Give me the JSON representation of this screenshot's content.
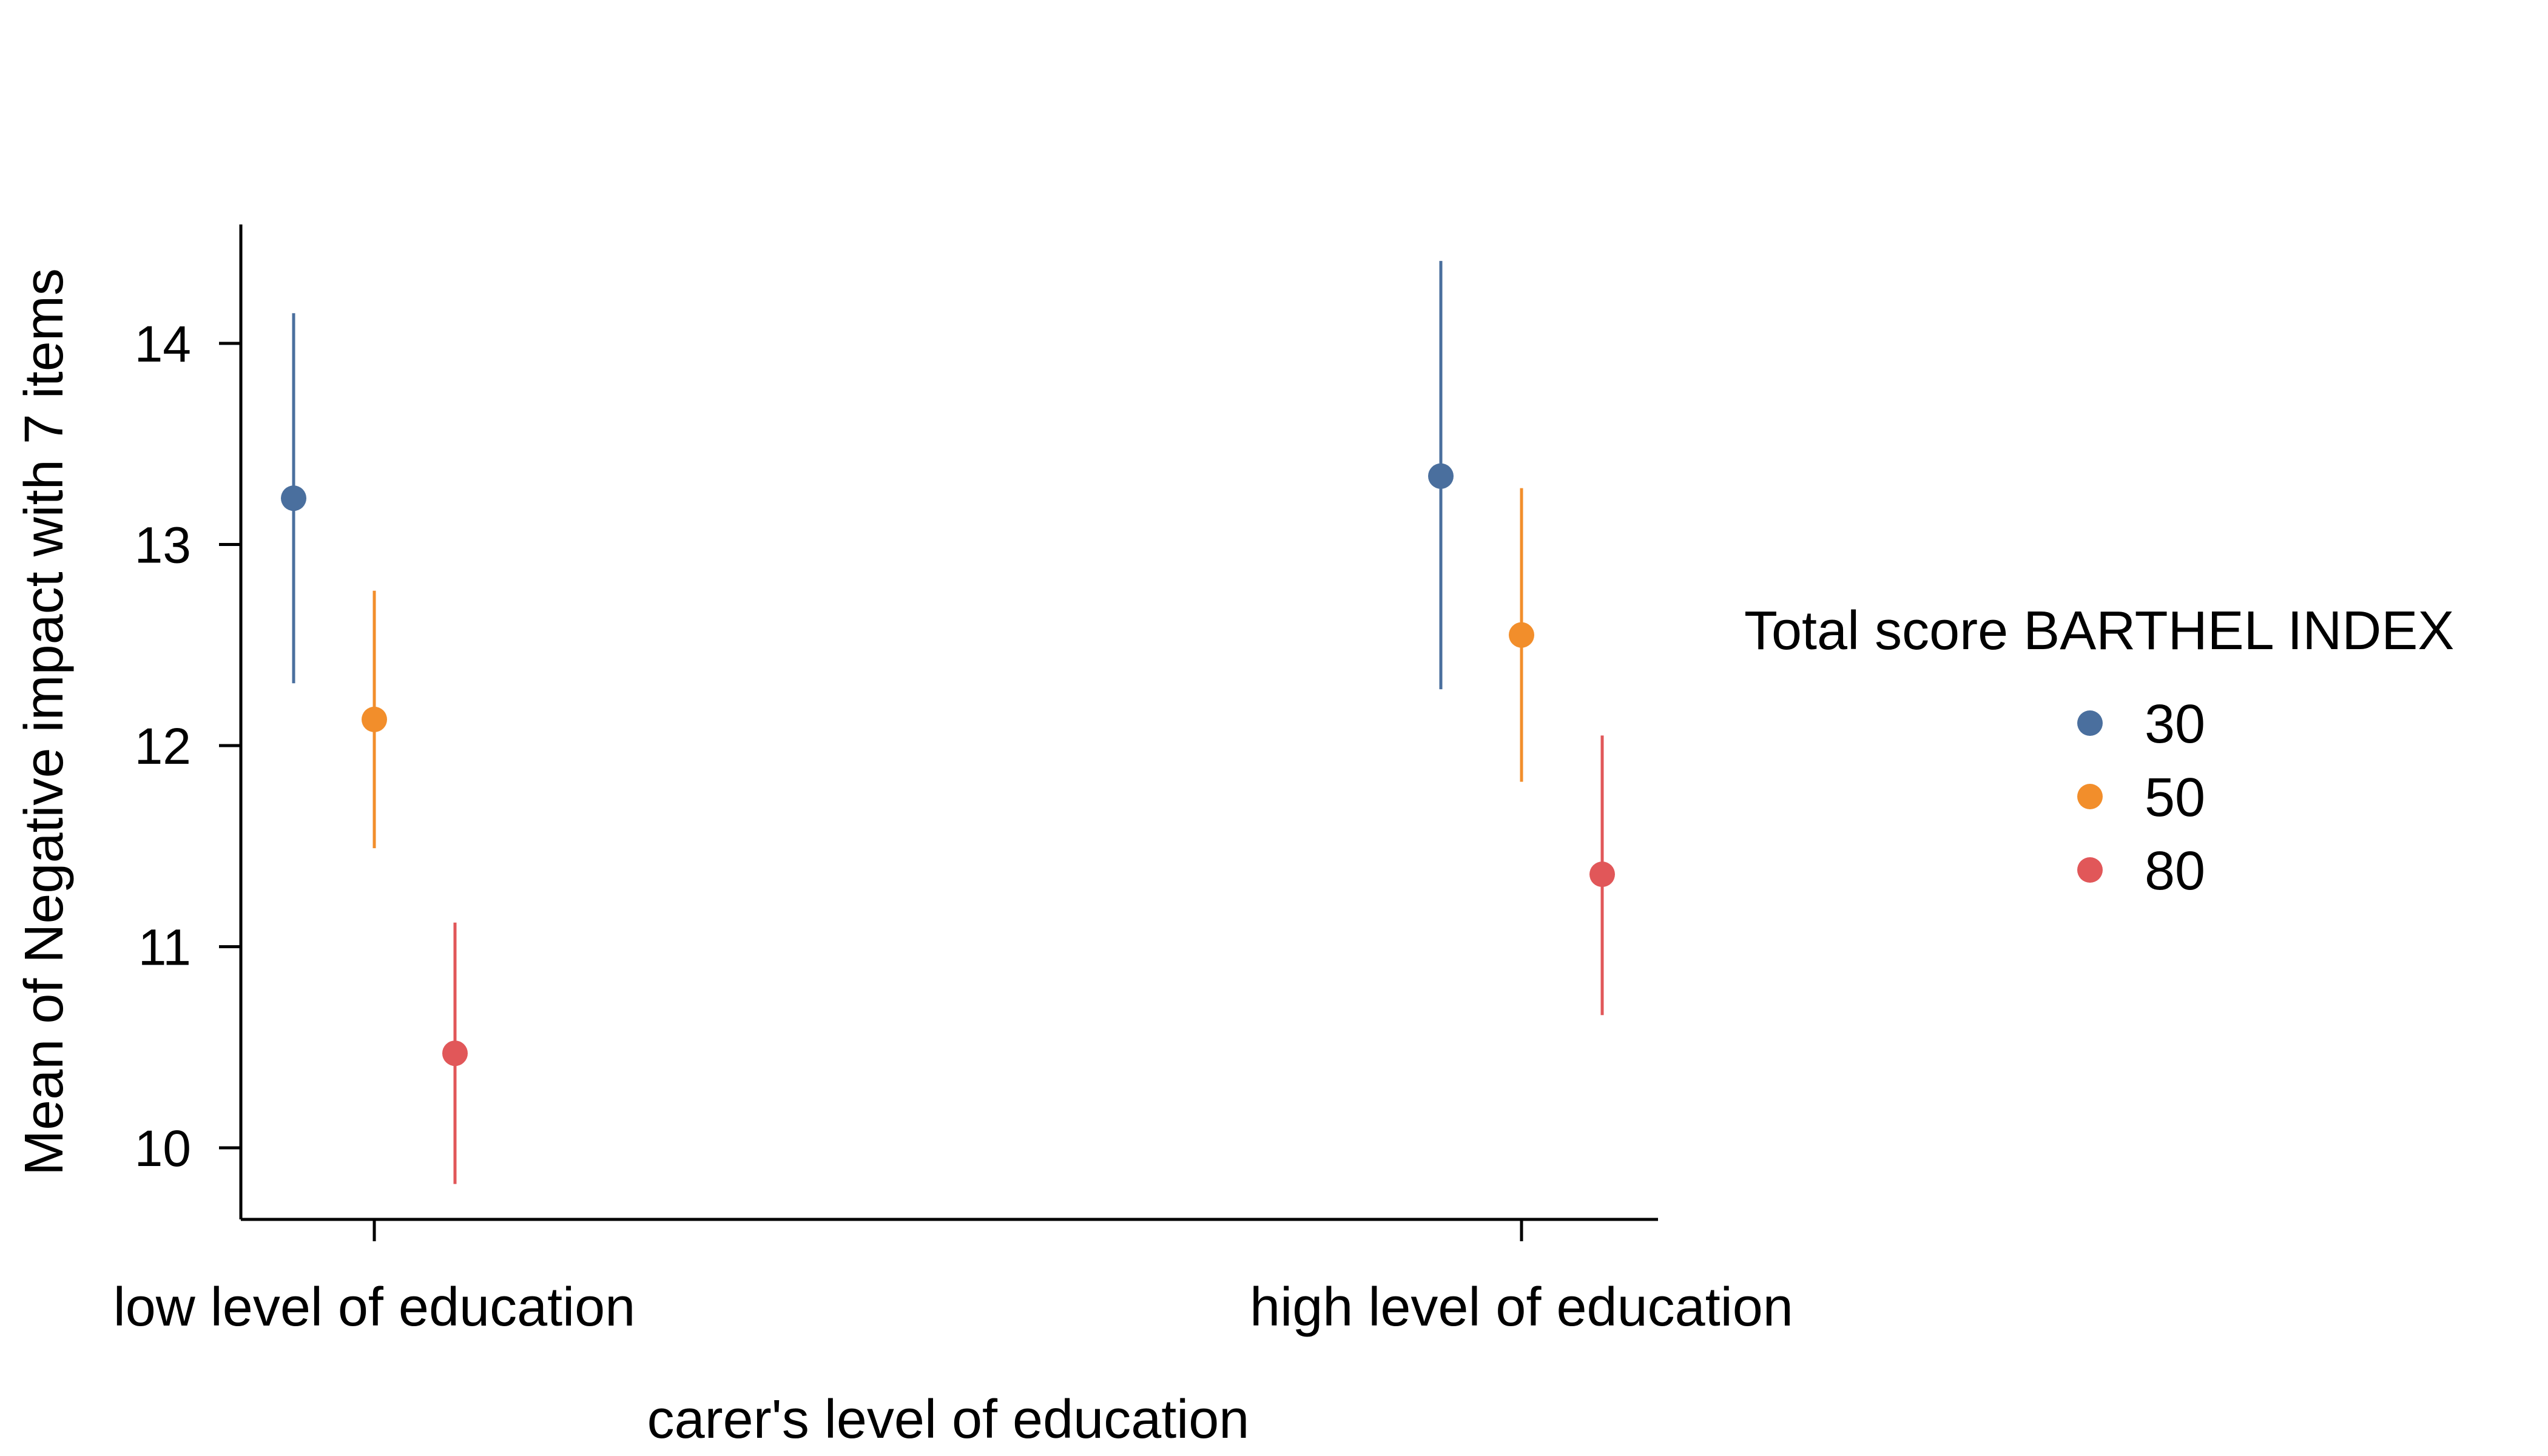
{
  "chart_data": {
    "type": "scatter",
    "title": "",
    "xlabel": "carer's level of education",
    "ylabel": "Mean of Negative impact with 7 items",
    "categories": [
      "low level of education",
      "high level of education"
    ],
    "yticks": [
      10,
      11,
      12,
      13,
      14
    ],
    "ylim": [
      9.65,
      14.6
    ],
    "grid": false,
    "legend": {
      "title": "Total score BARTHEL INDEX",
      "placement": "right"
    },
    "series": [
      {
        "name": "30",
        "color": "#4a6f9e",
        "values": [
          13.23,
          13.34
        ],
        "ci_low": [
          12.31,
          12.28
        ],
        "ci_high": [
          14.15,
          14.41
        ]
      },
      {
        "name": "50",
        "color": "#f28e2b",
        "values": [
          12.13,
          12.55
        ],
        "ci_low": [
          11.49,
          11.82
        ],
        "ci_high": [
          12.77,
          13.28
        ]
      },
      {
        "name": "80",
        "color": "#e15759",
        "values": [
          10.47,
          11.36
        ],
        "ci_low": [
          9.82,
          10.66
        ],
        "ci_high": [
          11.12,
          12.05
        ]
      }
    ]
  }
}
